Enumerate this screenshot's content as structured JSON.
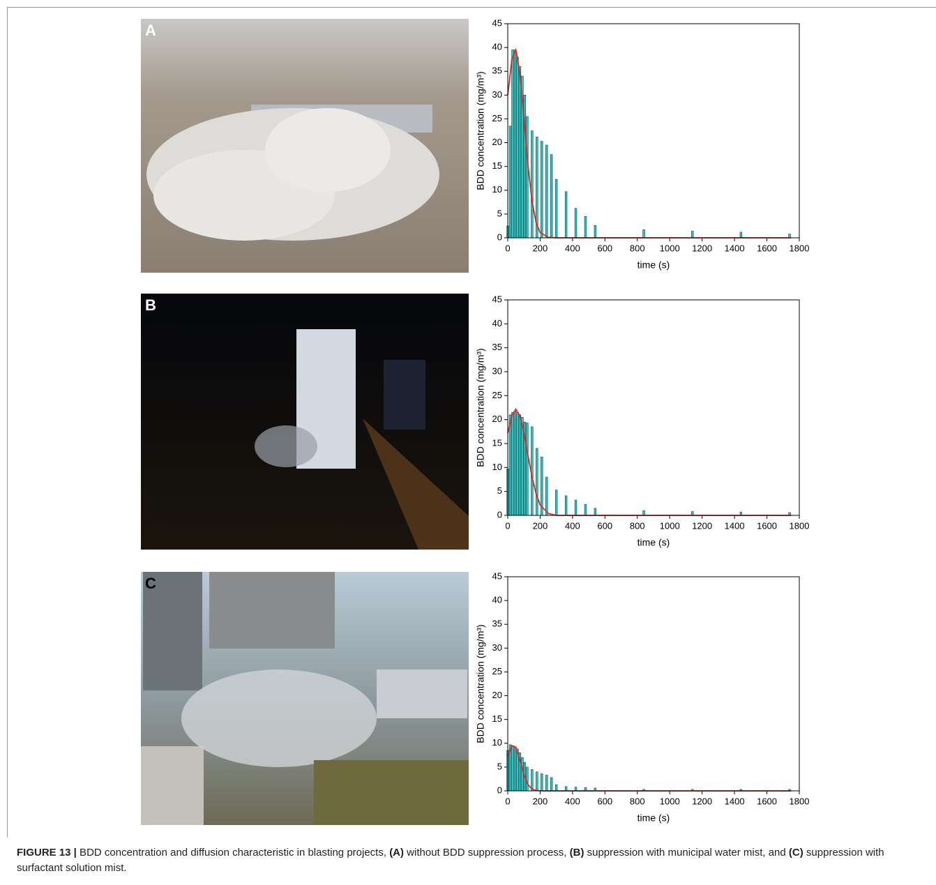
{
  "chart_data": [
    {
      "type": "bar",
      "label": "A",
      "color": "#2ec5c5",
      "x": [
        0,
        15,
        30,
        45,
        60,
        75,
        90,
        105,
        120,
        150,
        180,
        210,
        240,
        270,
        300,
        360,
        420,
        480,
        540,
        840,
        1140,
        1440,
        1740
      ],
      "values": [
        2.5,
        23.5,
        39.5,
        39.5,
        38,
        36,
        34,
        30,
        25.5,
        22.5,
        21.2,
        20.3,
        19.5,
        17.5,
        12.3,
        9.7,
        6.2,
        4.5,
        2.6,
        1.7,
        1.4,
        1.2,
        0.8
      ],
      "fit": {
        "color": "#e8231e",
        "x": [
          0,
          25,
          50,
          75,
          100,
          125,
          150,
          175,
          200,
          250,
          300,
          600,
          900,
          1200,
          1500,
          1750
        ],
        "values": [
          30,
          37.4,
          39.5,
          34.7,
          25.3,
          15.3,
          7.7,
          3.2,
          1.1,
          0.1,
          0,
          0,
          0,
          0,
          0,
          0
        ]
      },
      "xlabel": "time (s)",
      "ylabel": "BDD concentration (mg/m³)",
      "xlim": [
        0,
        1800
      ],
      "ylim": [
        0,
        45
      ],
      "xticks": [
        0,
        200,
        400,
        600,
        800,
        1000,
        1200,
        1400,
        1600,
        1800
      ],
      "yticks": [
        0,
        5,
        10,
        15,
        20,
        25,
        30,
        35,
        40,
        45
      ]
    },
    {
      "type": "bar",
      "label": "B",
      "color": "#2ec5c5",
      "x": [
        0,
        15,
        30,
        45,
        60,
        75,
        90,
        105,
        120,
        150,
        180,
        210,
        240,
        300,
        360,
        420,
        480,
        540,
        840,
        1140,
        1440,
        1740
      ],
      "values": [
        9.7,
        21,
        21.5,
        21.8,
        21.5,
        21,
        20.5,
        19.5,
        19.3,
        18.5,
        14,
        12.2,
        8,
        5.3,
        4.1,
        3.2,
        2.3,
        1.5,
        1,
        0.8,
        0.7,
        0.6
      ],
      "fit": {
        "color": "#e8231e",
        "x": [
          0,
          25,
          50,
          75,
          100,
          125,
          150,
          175,
          200,
          250,
          300,
          600,
          900,
          1200,
          1500,
          1750
        ],
        "values": [
          17.2,
          20.8,
          22.2,
          20.8,
          17.2,
          12.5,
          8,
          4.5,
          2.2,
          0.4,
          0,
          0,
          0,
          0,
          0,
          0
        ]
      },
      "xlabel": "time (s)",
      "ylabel": "BDD concentration (mg/m³)",
      "xlim": [
        0,
        1800
      ],
      "ylim": [
        0,
        45
      ],
      "xticks": [
        0,
        200,
        400,
        600,
        800,
        1000,
        1200,
        1400,
        1600,
        1800
      ],
      "yticks": [
        0,
        5,
        10,
        15,
        20,
        25,
        30,
        35,
        40,
        45
      ]
    },
    {
      "type": "bar",
      "label": "C",
      "color": "#2ec5c5",
      "x": [
        0,
        15,
        30,
        45,
        60,
        75,
        90,
        105,
        120,
        150,
        180,
        210,
        240,
        270,
        300,
        360,
        420,
        480,
        540,
        840,
        1140,
        1440,
        1740
      ],
      "values": [
        8.5,
        9.7,
        9.5,
        9.2,
        8.8,
        8,
        7,
        6,
        5,
        4.5,
        4,
        3.6,
        3.3,
        2.8,
        1.3,
        0.9,
        0.8,
        0.7,
        0.6,
        0.3,
        0.3,
        0.3,
        0.3
      ],
      "fit": {
        "color": "#e8231e",
        "x": [
          0,
          25,
          50,
          75,
          100,
          125,
          150,
          175,
          200,
          250,
          300,
          600,
          900,
          1200,
          1500,
          1750
        ],
        "values": [
          7.2,
          9.5,
          9.2,
          6.5,
          3.4,
          1.3,
          0.4,
          0.1,
          0,
          0,
          0,
          0,
          0,
          0,
          0,
          0
        ]
      },
      "xlabel": "time (s)",
      "ylabel": "BDD concentration (mg/m³)",
      "xlim": [
        0,
        1800
      ],
      "ylim": [
        0,
        45
      ],
      "xticks": [
        0,
        200,
        400,
        600,
        800,
        1000,
        1200,
        1400,
        1600,
        1800
      ],
      "yticks": [
        0,
        5,
        10,
        15,
        20,
        25,
        30,
        35,
        40,
        45
      ]
    }
  ],
  "caption": [
    {
      "text": "FIGURE 13 |",
      "bold": true
    },
    {
      "text": " BDD concentration and diffusion characteristic in blasting projects, ",
      "bold": false
    },
    {
      "text": "(A)",
      "bold": true
    },
    {
      "text": " without BDD suppression process, ",
      "bold": false
    },
    {
      "text": "(B)",
      "bold": true
    },
    {
      "text": " suppression with municipal water mist, and ",
      "bold": false
    },
    {
      "text": "(C)",
      "bold": true
    },
    {
      "text": " suppression with surfactant solution mist.",
      "bold": false
    }
  ]
}
